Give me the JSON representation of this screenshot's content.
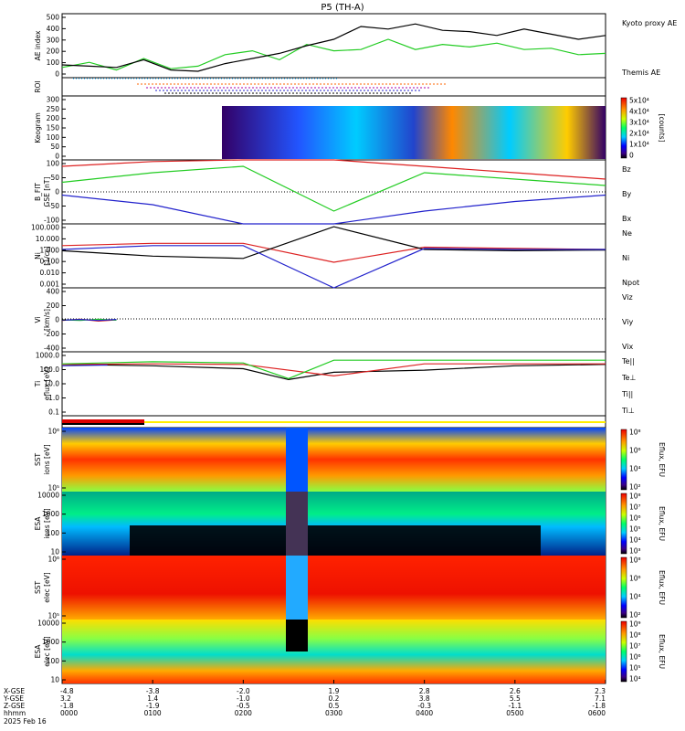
{
  "title": "P5 (TH-A)",
  "date_label": "2025 Feb 16",
  "time": {
    "ticks": [
      "0000",
      "0100",
      "0200",
      "0300",
      "0400",
      "0500",
      "0600"
    ],
    "row_labels": [
      "X-GSE",
      "Y-GSE",
      "Z-GSE",
      "hhmm"
    ],
    "x_gse": [
      "-4.8",
      "-3.8",
      "-2.0",
      "1.9",
      "2.8",
      "2.6",
      "2.3"
    ],
    "y_gse": [
      "3.2",
      "1.4",
      "-1.0",
      "0.2",
      "3.8",
      "5.5",
      "7.1"
    ],
    "z_gse": [
      "-1.8",
      "-1.9",
      "-0.5",
      "0.5",
      "-0.3",
      "-1.1",
      "-1.8"
    ]
  },
  "chart_data": [
    {
      "panel": "ae",
      "type": "line",
      "ylabel": "AE index",
      "ylim": [
        0,
        500
      ],
      "yticks": [
        "500",
        "400",
        "300",
        "200",
        "100",
        "0"
      ],
      "x_unit": "hours",
      "series": [
        {
          "name": "Kyoto proxy AE",
          "color": "#22cc22",
          "x": [
            0,
            0.3,
            0.6,
            0.9,
            1.2,
            1.5,
            1.8,
            2.1,
            2.4,
            2.7,
            3.0,
            3.3,
            3.6,
            3.9,
            4.2,
            4.5,
            4.8,
            5.1,
            5.4,
            5.7,
            6.0
          ],
          "values": [
            80,
            120,
            60,
            150,
            70,
            90,
            180,
            210,
            140,
            260,
            210,
            220,
            300,
            220,
            260,
            240,
            270,
            220,
            230,
            180,
            190
          ]
        },
        {
          "name": "Themis AE",
          "color": "#000000",
          "x": [
            0,
            0.3,
            0.6,
            0.9,
            1.2,
            1.5,
            1.8,
            2.1,
            2.4,
            2.7,
            3.0,
            3.3,
            3.6,
            3.9,
            4.2,
            4.5,
            4.8,
            5.1,
            5.4,
            5.7,
            6.0
          ],
          "values": [
            100,
            90,
            80,
            140,
            60,
            50,
            110,
            150,
            190,
            250,
            300,
            400,
            380,
            420,
            370,
            360,
            330,
            380,
            340,
            300,
            330
          ]
        }
      ]
    },
    {
      "panel": "roi",
      "type": "heatmap",
      "ylabel": "ROI"
    },
    {
      "panel": "keogram",
      "type": "heatmap",
      "ylabel": "Keogram",
      "ylim": [
        0,
        300
      ],
      "yticks": [
        "300",
        "250",
        "200",
        "150",
        "100",
        "50",
        "0"
      ],
      "colorbar": {
        "label": "[counts]",
        "ticks": [
          "5x10⁴",
          "4x10⁴",
          "3x10⁴",
          "2x10⁴",
          "1x10⁴",
          "0"
        ]
      }
    },
    {
      "panel": "bfield",
      "type": "line",
      "ylabel": "B_FIT",
      "unit": "GSE [nT]",
      "ylim": [
        -100,
        100
      ],
      "yticks": [
        "100",
        "50",
        "0",
        "-50",
        "-100"
      ],
      "series": [
        {
          "name": "Bz",
          "color": "#dd2222",
          "x": [
            0,
            1,
            2,
            3,
            4,
            5,
            6
          ],
          "values": [
            80,
            95,
            100,
            100,
            80,
            60,
            40
          ]
        },
        {
          "name": "By",
          "color": "#22cc22",
          "x": [
            0,
            1,
            2,
            3,
            4,
            5,
            6
          ],
          "values": [
            30,
            60,
            80,
            -60,
            60,
            40,
            20
          ]
        },
        {
          "name": "Bx",
          "color": "#2222cc",
          "x": [
            0,
            1,
            2,
            3,
            4,
            5,
            6
          ],
          "values": [
            -10,
            -40,
            -100,
            -100,
            -60,
            -30,
            -10
          ]
        }
      ]
    },
    {
      "panel": "density",
      "type": "line",
      "ylabel": "Ni",
      "unit": "[1/cc]",
      "scale": "log",
      "ylim": [
        0.001,
        100
      ],
      "yticks": [
        "100.000",
        "10.000",
        "1.000",
        "0.100",
        "0.010",
        "0.001"
      ],
      "series": [
        {
          "name": "Ne",
          "color": "#dd2222",
          "x": [
            0,
            1,
            2,
            3,
            4,
            5,
            6
          ],
          "values": [
            2,
            3,
            3,
            0.1,
            1.5,
            1.2,
            1
          ]
        },
        {
          "name": "Ni",
          "color": "#000000",
          "x": [
            0,
            1,
            2,
            3,
            4,
            5,
            6
          ],
          "values": [
            0.8,
            0.3,
            0.2,
            60,
            1,
            0.8,
            0.9
          ]
        },
        {
          "name": "Npot",
          "color": "#2222cc",
          "x": [
            0,
            1,
            2,
            3,
            4,
            5,
            6
          ],
          "values": [
            1,
            2,
            2,
            0.001,
            1.2,
            1,
            1
          ]
        }
      ]
    },
    {
      "panel": "velocity",
      "type": "line",
      "ylabel": "Vi",
      "unit": "[km/s]",
      "ylim": [
        -500,
        500
      ],
      "yticks": [
        "400",
        "200",
        "0",
        "-200",
        "-400"
      ],
      "series": [
        {
          "name": "Viz",
          "color": "#dd2222",
          "x": [
            0,
            0.2,
            0.4,
            0.6
          ],
          "values": [
            -10,
            10,
            -20,
            0
          ]
        },
        {
          "name": "Viy",
          "color": "#22cc22",
          "x": [
            0,
            0.2,
            0.4,
            0.6
          ],
          "values": [
            0,
            -10,
            10,
            -5
          ]
        },
        {
          "name": "Vix",
          "color": "#2222cc",
          "x": [
            0,
            0.2,
            0.4,
            0.6
          ],
          "values": [
            -5,
            5,
            -10,
            5
          ]
        }
      ]
    },
    {
      "panel": "temperature",
      "type": "line",
      "ylabel": "Ti",
      "unit": "eflux [eV]",
      "scale": "log",
      "ylim": [
        0.05,
        10000
      ],
      "yticks": [
        "1000.0",
        "100.0",
        "10.0",
        "1.0",
        "0.1"
      ],
      "series": [
        {
          "name": "Te||",
          "color": "#000000",
          "x": [
            0,
            1,
            2,
            2.5,
            3,
            4,
            5,
            6
          ],
          "values": [
            900,
            700,
            400,
            50,
            200,
            300,
            700,
            900
          ]
        },
        {
          "name": "Te⊥",
          "color": "#dd2222",
          "x": [
            0,
            1,
            2,
            3,
            4,
            5,
            6
          ],
          "values": [
            900,
            1000,
            900,
            100,
            1000,
            1000,
            1000
          ]
        },
        {
          "name": "Ti||",
          "color": "#22cc22",
          "x": [
            0,
            1,
            2,
            2.5,
            3,
            4,
            5,
            6
          ],
          "values": [
            1000,
            1500,
            1200,
            60,
            2000,
            2000,
            2000,
            2000
          ]
        },
        {
          "name": "Ti⊥",
          "color": "#2222cc",
          "x": [
            0,
            0.5
          ],
          "values": [
            700,
            800
          ]
        }
      ]
    },
    {
      "panel": "sst_ions",
      "type": "heatmap",
      "ylabel": "SST",
      "unit": "ions [eV]",
      "yticks": [
        "10⁶",
        "10⁵"
      ],
      "colorbar": {
        "label": "Eflux, EFU",
        "ticks": [
          "10⁸",
          "10⁶",
          "10⁴",
          "10²"
        ]
      }
    },
    {
      "panel": "esa_ions",
      "type": "heatmap",
      "ylabel": "ESA",
      "unit": "ions [eV]",
      "yticks": [
        "10000",
        "1000",
        "100",
        "10"
      ],
      "colorbar": {
        "label": "Eflux, EFU",
        "ticks": [
          "10⁸",
          "10⁷",
          "10⁶",
          "10⁵",
          "10⁴",
          "10³"
        ]
      }
    },
    {
      "panel": "sst_elec",
      "type": "heatmap",
      "ylabel": "SST",
      "unit": "elec [eV]",
      "yticks": [
        "10⁶",
        "10⁵"
      ],
      "colorbar": {
        "label": "Eflux, EFU",
        "ticks": [
          "10⁸",
          "10⁶",
          "10⁴",
          "10²"
        ]
      }
    },
    {
      "panel": "esa_elec",
      "type": "heatmap",
      "ylabel": "ESA",
      "unit": "elec [eV]",
      "yticks": [
        "10000",
        "1000",
        "100",
        "10"
      ],
      "colorbar": {
        "label": "Eflux, EFU",
        "ticks": [
          "10⁹",
          "10⁸",
          "10⁷",
          "10⁶",
          "10⁵",
          "10⁴"
        ]
      }
    }
  ],
  "colors": {
    "red": "#dd2222",
    "green": "#22cc22",
    "blue": "#2222cc",
    "black": "#000000"
  }
}
